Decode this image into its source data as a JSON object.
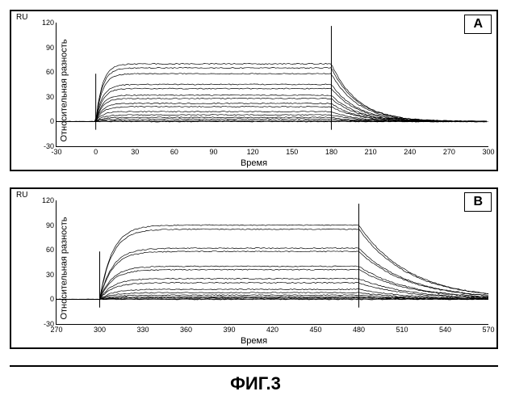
{
  "figure_caption": "ФИГ.3",
  "panels": {
    "A": {
      "label": "A",
      "ru_label": "RU",
      "ylabel": "Относительная разность",
      "xlabel": "Время",
      "type": "line",
      "background_color": "#ffffff",
      "line_color": "#000000",
      "line_width": 0.7,
      "xlim": [
        -30,
        300
      ],
      "ylim": [
        -30,
        120
      ],
      "xticks": [
        -30,
        0,
        30,
        60,
        90,
        120,
        150,
        180,
        210,
        240,
        270,
        300
      ],
      "yticks": [
        -30,
        0,
        30,
        60,
        90,
        120
      ],
      "tick_fontsize": 9,
      "label_fontsize": 11,
      "injection_start": 0,
      "injection_end": 180,
      "spike_height": 116,
      "series_plateau": [
        70,
        65,
        58,
        45,
        40,
        32,
        28,
        22,
        18,
        12,
        8,
        5,
        3,
        1,
        0
      ],
      "decay_tau": 20
    },
    "B": {
      "label": "B",
      "ru_label": "RU",
      "ylabel": "Относительная разность",
      "xlabel": "Время",
      "type": "line",
      "background_color": "#ffffff",
      "line_color": "#000000",
      "line_width": 0.7,
      "xlim": [
        270,
        570
      ],
      "ylim": [
        -30,
        120
      ],
      "xticks": [
        270,
        300,
        330,
        360,
        390,
        420,
        450,
        480,
        510,
        540,
        570
      ],
      "yticks": [
        -30,
        0,
        30,
        60,
        90,
        120
      ],
      "tick_fontsize": 9,
      "label_fontsize": 11,
      "injection_start": 300,
      "injection_end": 480,
      "spike_height": 116,
      "series_plateau": [
        90,
        85,
        62,
        58,
        40,
        36,
        25,
        20,
        12,
        8,
        5,
        3,
        2,
        1,
        0
      ],
      "decay_tau": 35
    }
  }
}
